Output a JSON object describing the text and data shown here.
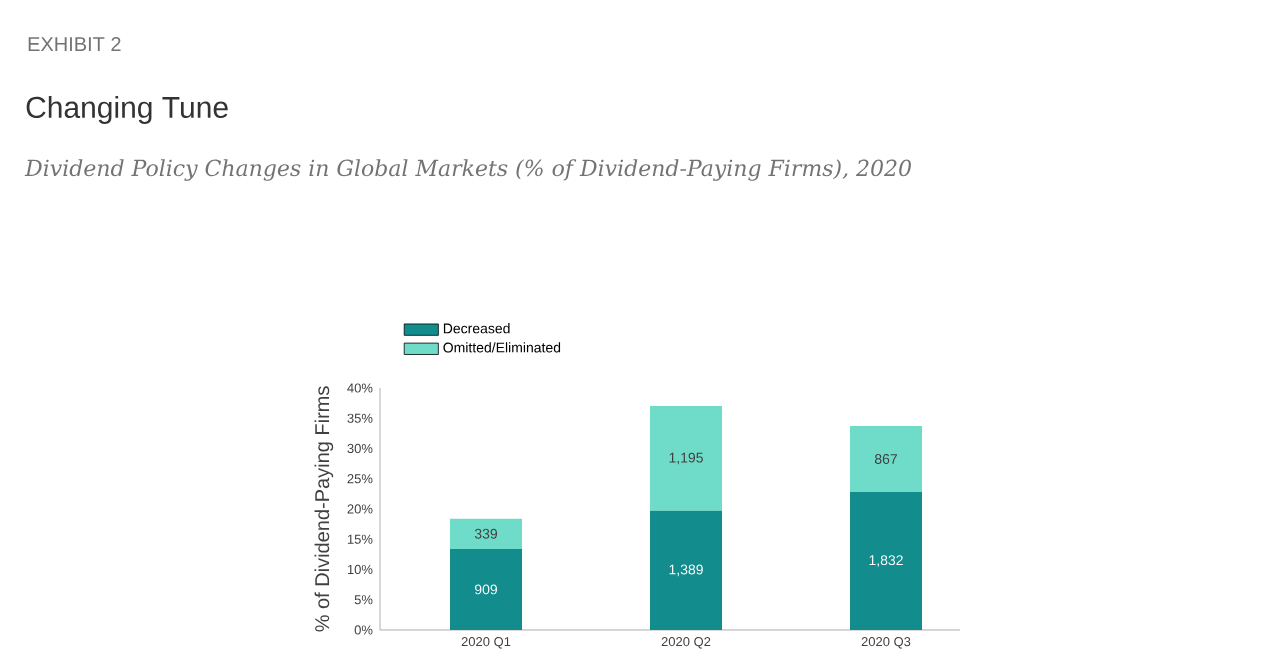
{
  "chart_data": {
    "type": "bar",
    "stacked": true,
    "title": "Changing Tune",
    "subtitle": "Dividend Policy Changes in Global Markets (% of Dividend-Paying Firms), 2020",
    "ylabel": "% of Dividend-Paying Firms",
    "categories": [
      "2020 Q1",
      "2020 Q2",
      "2020 Q3"
    ],
    "annotations": [
      "EXHIBIT 2",
      "909",
      "1,389",
      "1,832",
      "339",
      "1,195",
      "867"
    ],
    "series": [
      {
        "name": "Decreased",
        "color": "#128c8c",
        "values": [
          13.4,
          19.7,
          22.8
        ]
      },
      {
        "name": "Omitted/Eliminated",
        "color": "#6edcc8",
        "values": [
          5.0,
          17.3,
          10.9
        ]
      }
    ],
    "ylim": [
      0,
      40
    ],
    "yticks": [
      {
        "value": 0,
        "label": "0%"
      },
      {
        "value": 5,
        "label": "5%"
      },
      {
        "value": 10,
        "label": "10%"
      },
      {
        "value": 15,
        "label": "15%"
      },
      {
        "value": 20,
        "label": "20%"
      },
      {
        "value": 25,
        "label": "25%"
      },
      {
        "value": 30,
        "label": "30%"
      },
      {
        "value": 35,
        "label": "35%"
      },
      {
        "value": 40,
        "label": "40%"
      }
    ],
    "legend": "top left",
    "grid": false
  }
}
